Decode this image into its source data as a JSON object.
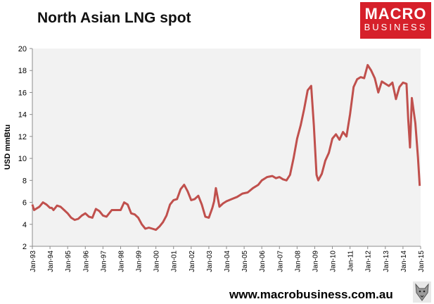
{
  "header": {
    "title": "North Asian LNG spot"
  },
  "logo": {
    "line1": "MACRO",
    "line2": "BUSINESS"
  },
  "footer": {
    "url": "www.macrobusiness.com.au"
  },
  "colors": {
    "line": "#c0504d",
    "plot_bg": "#f2f2f2",
    "logo_bg": "#d6202a"
  },
  "chart_data": {
    "type": "line",
    "title": "North Asian LNG spot",
    "xlabel": "",
    "ylabel": "USD mmBtu",
    "ylim": [
      2,
      20
    ],
    "yticks": [
      2,
      4,
      6,
      8,
      10,
      12,
      14,
      16,
      18,
      20
    ],
    "xlim": [
      1993.0,
      2015.0
    ],
    "xtick_labels": [
      "Jan-93",
      "Jan-94",
      "Jan-95",
      "Jan-96",
      "Jan-97",
      "Jan-98",
      "Jan-99",
      "Jan-00",
      "Jan-01",
      "Jan-02",
      "Jan-03",
      "Jan-04",
      "Jan-05",
      "Jan-06",
      "Jan-07",
      "Jan-08",
      "Jan-09",
      "Jan-10",
      "Jan-11",
      "Jan-12",
      "Jan-13",
      "Jan-14",
      "Jan-15"
    ],
    "grid": false,
    "series": [
      {
        "x": [
          1993.0,
          1993.1,
          1993.2,
          1993.4,
          1993.6,
          1993.8,
          1994.0,
          1994.1,
          1994.2,
          1994.4,
          1994.6,
          1994.8,
          1995.0,
          1995.2,
          1995.4,
          1995.6,
          1995.8,
          1996.0,
          1996.2,
          1996.4,
          1996.6,
          1996.8,
          1997.0,
          1997.2,
          1997.5,
          1997.8,
          1998.0,
          1998.2,
          1998.4,
          1998.6,
          1998.8,
          1999.0,
          1999.2,
          1999.4,
          1999.6,
          1999.8,
          2000.0,
          2000.2,
          2000.4,
          2000.6,
          2000.8,
          2001.0,
          2001.2,
          2001.4,
          2001.6,
          2001.8,
          2002.0,
          2002.2,
          2002.4,
          2002.6,
          2002.8,
          2003.0,
          2003.2,
          2003.3,
          2003.4,
          2003.6,
          2003.8,
          2004.0,
          2004.3,
          2004.6,
          2004.9,
          2005.2,
          2005.5,
          2005.8,
          2006.0,
          2006.3,
          2006.6,
          2006.8,
          2007.0,
          2007.2,
          2007.4,
          2007.6,
          2007.8,
          2008.0,
          2008.2,
          2008.4,
          2008.6,
          2008.8,
          2008.95,
          2009.1,
          2009.2,
          2009.4,
          2009.6,
          2009.8,
          2010.0,
          2010.2,
          2010.4,
          2010.6,
          2010.8,
          2011.0,
          2011.2,
          2011.4,
          2011.6,
          2011.8,
          2012.0,
          2012.2,
          2012.4,
          2012.6,
          2012.8,
          2013.0,
          2013.2,
          2013.4,
          2013.6,
          2013.8,
          2014.0,
          2014.2,
          2014.3,
          2014.4,
          2014.5,
          2014.7,
          2014.85,
          2014.95
        ],
        "y": [
          5.8,
          5.3,
          5.4,
          5.6,
          6.0,
          5.8,
          5.5,
          5.5,
          5.3,
          5.7,
          5.6,
          5.3,
          5.0,
          4.6,
          4.4,
          4.5,
          4.8,
          5.0,
          4.7,
          4.6,
          5.4,
          5.2,
          4.8,
          4.7,
          5.3,
          5.3,
          5.3,
          6.0,
          5.8,
          5.0,
          4.9,
          4.6,
          4.0,
          3.6,
          3.7,
          3.6,
          3.5,
          3.8,
          4.2,
          4.8,
          5.8,
          6.2,
          6.3,
          7.2,
          7.6,
          7.0,
          6.2,
          6.3,
          6.6,
          5.8,
          4.7,
          4.6,
          5.5,
          6.1,
          7.3,
          5.6,
          5.9,
          6.1,
          6.3,
          6.5,
          6.8,
          6.9,
          7.3,
          7.6,
          8.0,
          8.3,
          8.4,
          8.2,
          8.3,
          8.1,
          8.0,
          8.5,
          10.0,
          11.8,
          13.0,
          14.5,
          16.2,
          16.6,
          13.0,
          8.5,
          8.0,
          8.6,
          9.8,
          10.5,
          11.8,
          12.2,
          11.7,
          12.4,
          12.0,
          14.0,
          16.5,
          17.2,
          17.4,
          17.3,
          18.5,
          18.0,
          17.3,
          16.0,
          17.0,
          16.8,
          16.6,
          16.9,
          15.4,
          16.5,
          16.9,
          16.8,
          13.5,
          11.0,
          15.5,
          13.2,
          10.1,
          7.5
        ]
      }
    ]
  }
}
